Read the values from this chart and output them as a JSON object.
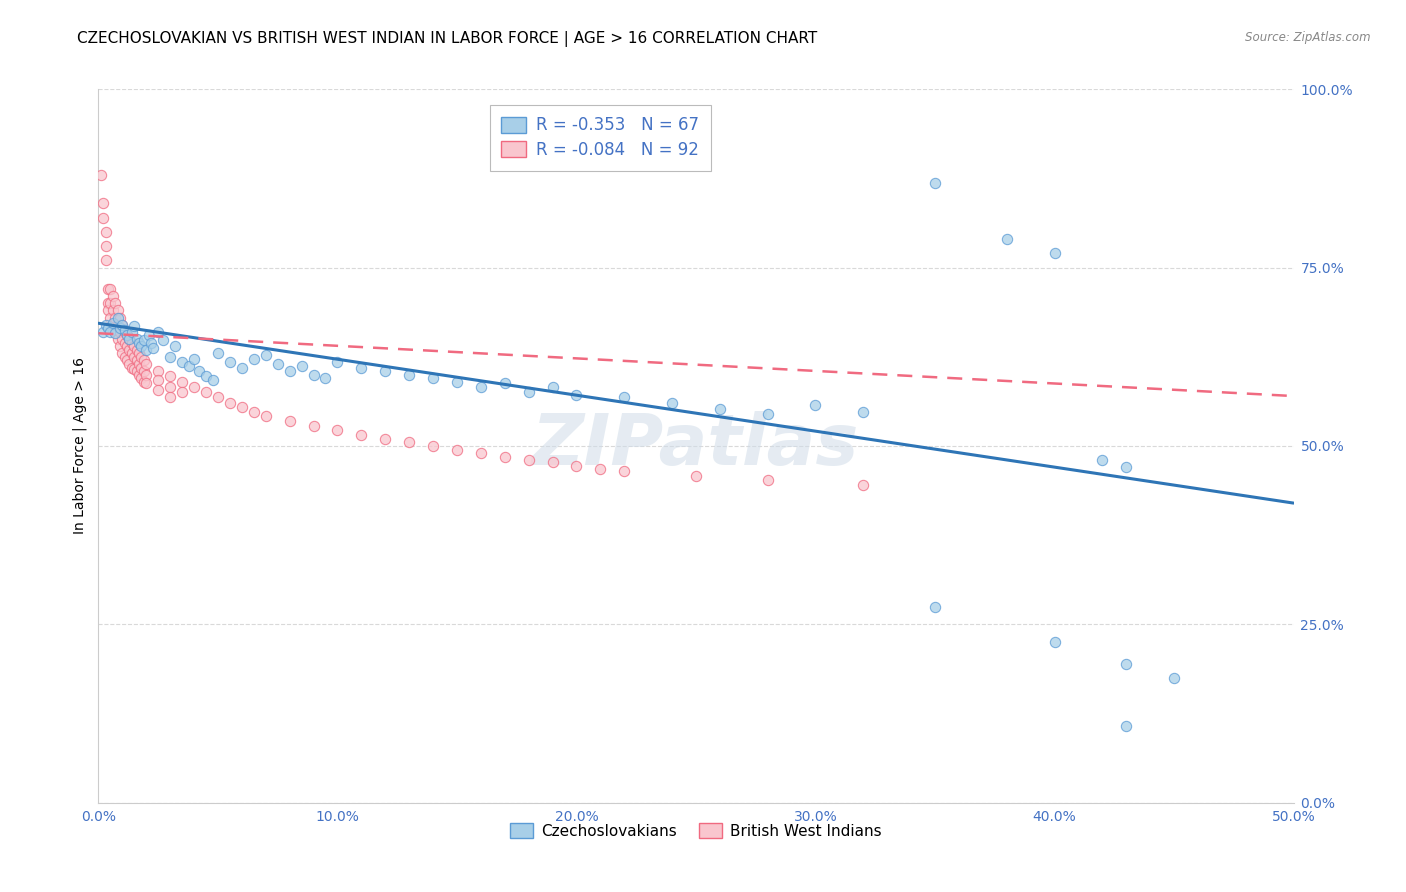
{
  "title": "CZECHOSLOVAKIAN VS BRITISH WEST INDIAN IN LABOR FORCE | AGE > 16 CORRELATION CHART",
  "source": "Source: ZipAtlas.com",
  "ylabel_label": "In Labor Force | Age > 16",
  "xlim": [
    0.0,
    0.5
  ],
  "ylim": [
    0.0,
    1.0
  ],
  "legend_blue_r": "-0.353",
  "legend_blue_n": "67",
  "legend_pink_r": "-0.084",
  "legend_pink_n": "92",
  "legend_label_blue": "Czechoslovakians",
  "legend_label_pink": "British West Indians",
  "watermark": "ZIPatlas",
  "blue_fill": "#a8cfe8",
  "blue_edge": "#5b9bd5",
  "pink_fill": "#f9c6ce",
  "pink_edge": "#f06a80",
  "blue_line_color": "#2e75b6",
  "pink_line_color": "#f06a80",
  "axis_color": "#4472c4",
  "grid_color": "#d0d0d0",
  "title_fontsize": 11,
  "tick_fontsize": 10,
  "label_fontsize": 10,
  "blue_scatter": [
    [
      0.002,
      0.66
    ],
    [
      0.003,
      0.67
    ],
    [
      0.004,
      0.665
    ],
    [
      0.005,
      0.66
    ],
    [
      0.006,
      0.672
    ],
    [
      0.007,
      0.658
    ],
    [
      0.008,
      0.68
    ],
    [
      0.009,
      0.665
    ],
    [
      0.01,
      0.67
    ],
    [
      0.011,
      0.662
    ],
    [
      0.012,
      0.655
    ],
    [
      0.013,
      0.65
    ],
    [
      0.014,
      0.66
    ],
    [
      0.015,
      0.668
    ],
    [
      0.016,
      0.65
    ],
    [
      0.017,
      0.645
    ],
    [
      0.018,
      0.64
    ],
    [
      0.019,
      0.648
    ],
    [
      0.02,
      0.635
    ],
    [
      0.021,
      0.655
    ],
    [
      0.022,
      0.645
    ],
    [
      0.023,
      0.638
    ],
    [
      0.025,
      0.66
    ],
    [
      0.027,
      0.648
    ],
    [
      0.03,
      0.625
    ],
    [
      0.032,
      0.64
    ],
    [
      0.035,
      0.618
    ],
    [
      0.038,
      0.612
    ],
    [
      0.04,
      0.622
    ],
    [
      0.042,
      0.605
    ],
    [
      0.045,
      0.598
    ],
    [
      0.048,
      0.592
    ],
    [
      0.05,
      0.63
    ],
    [
      0.055,
      0.618
    ],
    [
      0.06,
      0.61
    ],
    [
      0.065,
      0.622
    ],
    [
      0.07,
      0.628
    ],
    [
      0.075,
      0.615
    ],
    [
      0.08,
      0.605
    ],
    [
      0.085,
      0.612
    ],
    [
      0.09,
      0.6
    ],
    [
      0.095,
      0.595
    ],
    [
      0.1,
      0.618
    ],
    [
      0.11,
      0.61
    ],
    [
      0.12,
      0.605
    ],
    [
      0.13,
      0.6
    ],
    [
      0.14,
      0.595
    ],
    [
      0.15,
      0.59
    ],
    [
      0.16,
      0.582
    ],
    [
      0.17,
      0.588
    ],
    [
      0.18,
      0.575
    ],
    [
      0.19,
      0.582
    ],
    [
      0.2,
      0.572
    ],
    [
      0.22,
      0.568
    ],
    [
      0.24,
      0.56
    ],
    [
      0.26,
      0.552
    ],
    [
      0.28,
      0.545
    ],
    [
      0.3,
      0.558
    ],
    [
      0.32,
      0.548
    ],
    [
      0.35,
      0.868
    ],
    [
      0.38,
      0.79
    ],
    [
      0.4,
      0.77
    ],
    [
      0.42,
      0.48
    ],
    [
      0.43,
      0.47
    ],
    [
      0.35,
      0.275
    ],
    [
      0.4,
      0.225
    ],
    [
      0.43,
      0.195
    ],
    [
      0.45,
      0.175
    ],
    [
      0.43,
      0.108
    ]
  ],
  "pink_scatter": [
    [
      0.001,
      0.88
    ],
    [
      0.002,
      0.84
    ],
    [
      0.002,
      0.82
    ],
    [
      0.003,
      0.8
    ],
    [
      0.003,
      0.78
    ],
    [
      0.003,
      0.76
    ],
    [
      0.004,
      0.72
    ],
    [
      0.004,
      0.7
    ],
    [
      0.004,
      0.69
    ],
    [
      0.005,
      0.68
    ],
    [
      0.005,
      0.72
    ],
    [
      0.005,
      0.7
    ],
    [
      0.006,
      0.71
    ],
    [
      0.006,
      0.69
    ],
    [
      0.006,
      0.67
    ],
    [
      0.007,
      0.7
    ],
    [
      0.007,
      0.68
    ],
    [
      0.007,
      0.66
    ],
    [
      0.008,
      0.69
    ],
    [
      0.008,
      0.67
    ],
    [
      0.008,
      0.65
    ],
    [
      0.009,
      0.68
    ],
    [
      0.009,
      0.66
    ],
    [
      0.009,
      0.64
    ],
    [
      0.01,
      0.67
    ],
    [
      0.01,
      0.65
    ],
    [
      0.01,
      0.63
    ],
    [
      0.011,
      0.66
    ],
    [
      0.011,
      0.645
    ],
    [
      0.011,
      0.625
    ],
    [
      0.012,
      0.655
    ],
    [
      0.012,
      0.64
    ],
    [
      0.012,
      0.62
    ],
    [
      0.013,
      0.65
    ],
    [
      0.013,
      0.635
    ],
    [
      0.013,
      0.615
    ],
    [
      0.014,
      0.645
    ],
    [
      0.014,
      0.63
    ],
    [
      0.014,
      0.61
    ],
    [
      0.015,
      0.64
    ],
    [
      0.015,
      0.625
    ],
    [
      0.015,
      0.608
    ],
    [
      0.016,
      0.635
    ],
    [
      0.016,
      0.62
    ],
    [
      0.016,
      0.605
    ],
    [
      0.017,
      0.63
    ],
    [
      0.017,
      0.615
    ],
    [
      0.017,
      0.6
    ],
    [
      0.018,
      0.625
    ],
    [
      0.018,
      0.61
    ],
    [
      0.018,
      0.595
    ],
    [
      0.019,
      0.62
    ],
    [
      0.019,
      0.605
    ],
    [
      0.019,
      0.59
    ],
    [
      0.02,
      0.615
    ],
    [
      0.02,
      0.6
    ],
    [
      0.02,
      0.588
    ],
    [
      0.025,
      0.605
    ],
    [
      0.025,
      0.592
    ],
    [
      0.025,
      0.578
    ],
    [
      0.03,
      0.598
    ],
    [
      0.03,
      0.582
    ],
    [
      0.03,
      0.568
    ],
    [
      0.035,
      0.59
    ],
    [
      0.035,
      0.575
    ],
    [
      0.04,
      0.582
    ],
    [
      0.045,
      0.575
    ],
    [
      0.05,
      0.568
    ],
    [
      0.055,
      0.56
    ],
    [
      0.06,
      0.555
    ],
    [
      0.065,
      0.548
    ],
    [
      0.07,
      0.542
    ],
    [
      0.08,
      0.535
    ],
    [
      0.09,
      0.528
    ],
    [
      0.1,
      0.522
    ],
    [
      0.11,
      0.515
    ],
    [
      0.12,
      0.51
    ],
    [
      0.13,
      0.505
    ],
    [
      0.14,
      0.5
    ],
    [
      0.15,
      0.495
    ],
    [
      0.16,
      0.49
    ],
    [
      0.17,
      0.485
    ],
    [
      0.18,
      0.48
    ],
    [
      0.19,
      0.478
    ],
    [
      0.2,
      0.472
    ],
    [
      0.21,
      0.468
    ],
    [
      0.22,
      0.465
    ],
    [
      0.25,
      0.458
    ],
    [
      0.28,
      0.452
    ],
    [
      0.32,
      0.445
    ]
  ],
  "blue_trend_x": [
    0.0,
    0.5
  ],
  "blue_trend_y": [
    0.672,
    0.42
  ],
  "pink_trend_x": [
    0.0,
    0.5
  ],
  "pink_trend_y": [
    0.658,
    0.57
  ]
}
